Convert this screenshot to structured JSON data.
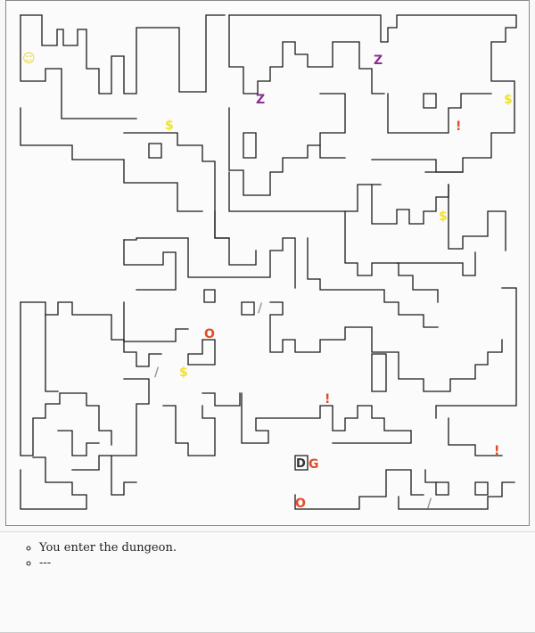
{
  "game": {
    "colors": {
      "wall": "#1a1a1a",
      "floor": "#fbfbfb",
      "player": "#e8d63a",
      "gold": "#f2e12b",
      "zombie": "#8e2f8e",
      "potion": "#e24b2a",
      "orc": "#e24b2a",
      "weapon": "#999999",
      "door": "#333333",
      "goblin": "#e24b2a"
    },
    "entities": [
      {
        "name": "player",
        "char": "☺",
        "type": "player"
      },
      {
        "name": "zombie-1",
        "char": "Z",
        "type": "zombie"
      },
      {
        "name": "zombie-2",
        "char": "Z",
        "type": "zombie"
      },
      {
        "name": "gold-1",
        "char": "$",
        "type": "gold"
      },
      {
        "name": "gold-2",
        "char": "$",
        "type": "gold"
      },
      {
        "name": "gold-3",
        "char": "$",
        "type": "gold"
      },
      {
        "name": "gold-4",
        "char": "$",
        "type": "gold"
      },
      {
        "name": "potion-1",
        "char": "!",
        "type": "potion"
      },
      {
        "name": "potion-2",
        "char": "!",
        "type": "potion"
      },
      {
        "name": "potion-3",
        "char": "!",
        "type": "potion"
      },
      {
        "name": "weapon-1",
        "char": "/",
        "type": "weapon"
      },
      {
        "name": "weapon-2",
        "char": "/",
        "type": "weapon"
      },
      {
        "name": "weapon-3",
        "char": "/",
        "type": "weapon"
      },
      {
        "name": "orc-1",
        "char": "O",
        "type": "orc"
      },
      {
        "name": "orc-2",
        "char": "O",
        "type": "orc"
      },
      {
        "name": "door",
        "char": "D",
        "type": "door"
      },
      {
        "name": "goblin",
        "char": "G",
        "type": "goblin"
      }
    ]
  },
  "log": {
    "messages": [
      "You enter the dungeon.",
      "---"
    ]
  }
}
